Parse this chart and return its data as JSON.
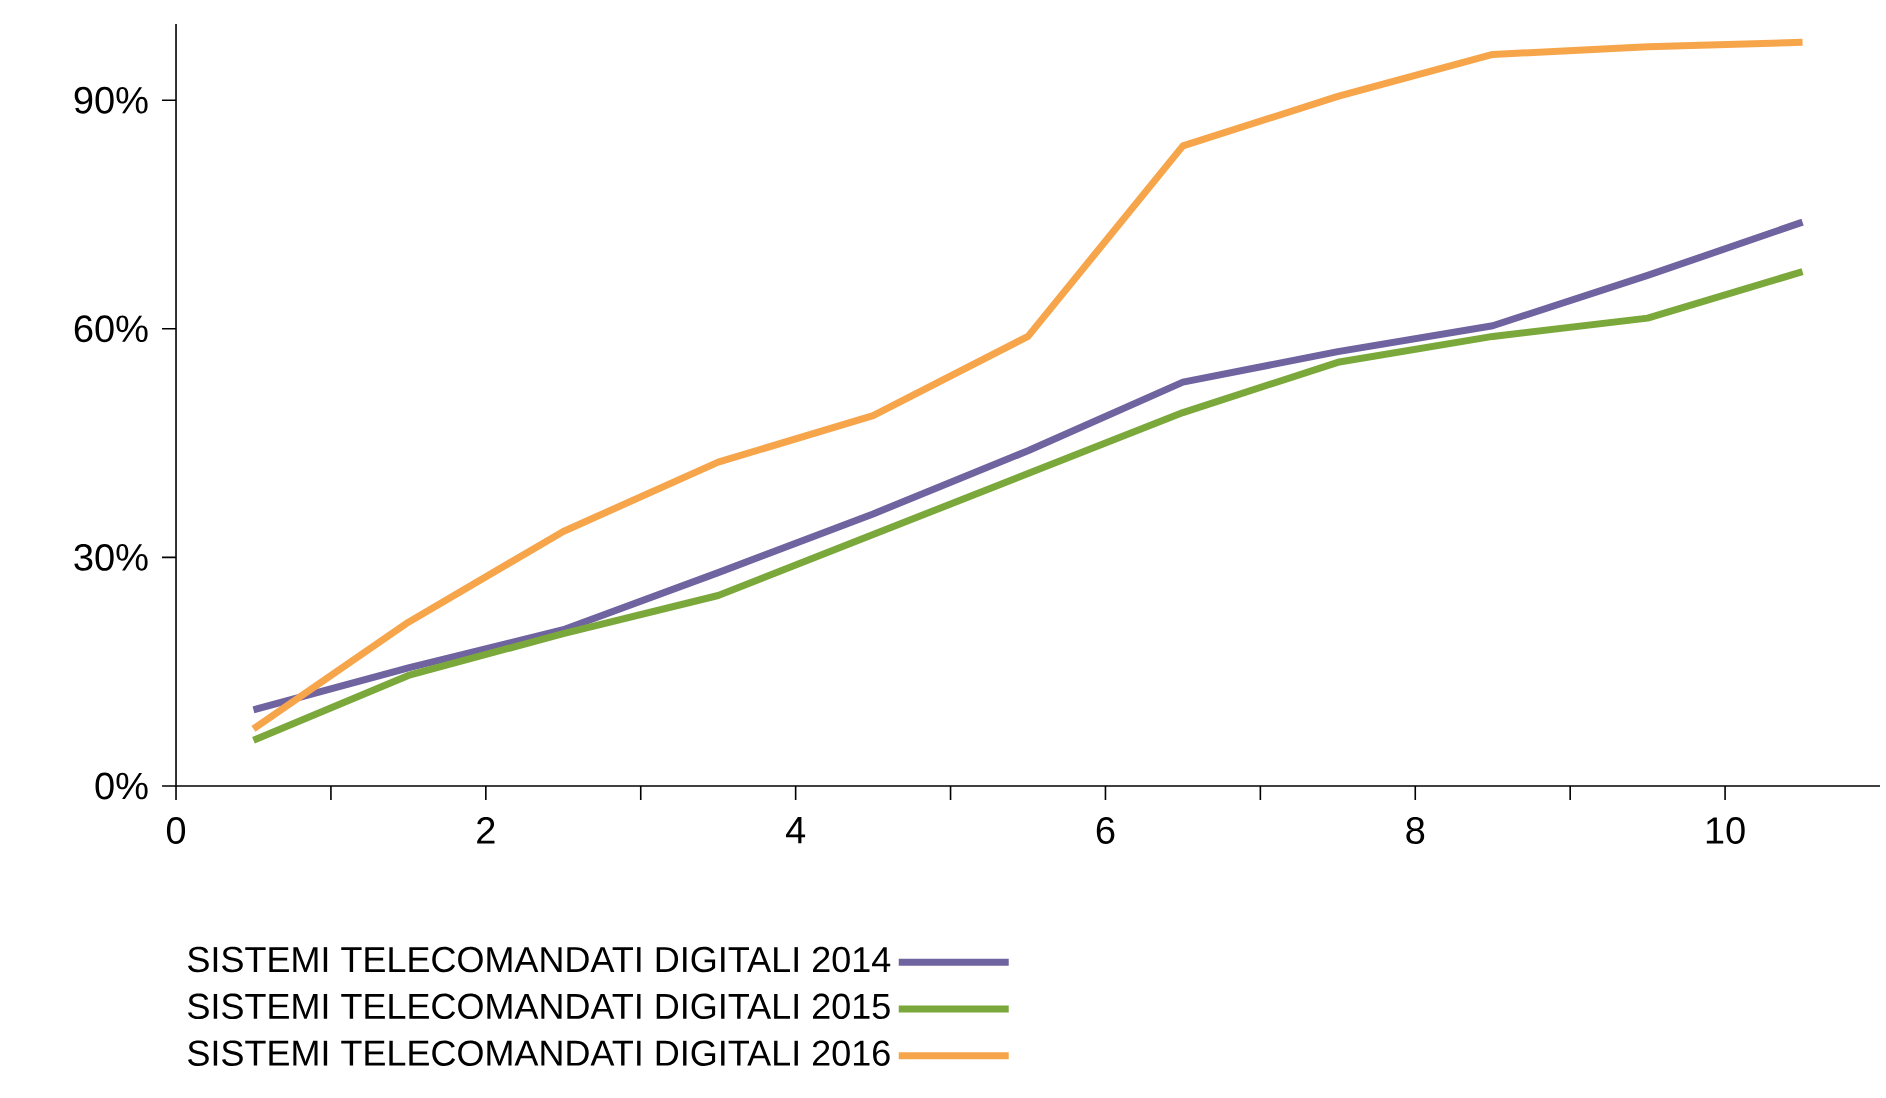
{
  "chart_data": {
    "type": "line",
    "x": [
      0.5,
      1.5,
      2.5,
      3.5,
      4.5,
      5.5,
      6.5,
      7.5,
      8.5,
      9.5,
      10.5
    ],
    "series": [
      {
        "name": "SISTEMI TELECOMANDATI DIGITALI 2014",
        "color": "#6f63a0",
        "values": [
          10,
          15.5,
          20.5,
          28,
          35.7,
          44,
          53,
          57,
          60.4,
          67,
          74
        ]
      },
      {
        "name": "SISTEMI TELECOMANDATI DIGITALI 2015",
        "color": "#7aa83a",
        "values": [
          6,
          14.5,
          20,
          25,
          33,
          41,
          49,
          55.6,
          59,
          61.4,
          67.5
        ]
      },
      {
        "name": "SISTEMI TELECOMANDATI DIGITALI 2016",
        "color": "#f7a54a",
        "values": [
          7.5,
          21.5,
          33.4,
          42.5,
          48.6,
          59,
          84,
          90.5,
          96,
          97,
          97.6
        ]
      }
    ],
    "xlim": [
      0,
      11
    ],
    "xticks": [
      0,
      {
        "value": 1,
        "label": null
      },
      2,
      {
        "value": 3,
        "label": null
      },
      4,
      {
        "value": 5,
        "label": null
      },
      6,
      {
        "value": 7,
        "label": null
      },
      8,
      {
        "value": 9,
        "label": null
      },
      10
    ],
    "ylim": [
      0,
      100
    ],
    "yticks": [
      {
        "value": 0,
        "label": "0%"
      },
      {
        "value": 30,
        "label": "30%"
      },
      {
        "value": 60,
        "label": "60%"
      },
      {
        "value": 90,
        "label": "90%"
      }
    ],
    "legend": "bottom",
    "marker": "none",
    "line_style": "solid",
    "grid": false
  }
}
